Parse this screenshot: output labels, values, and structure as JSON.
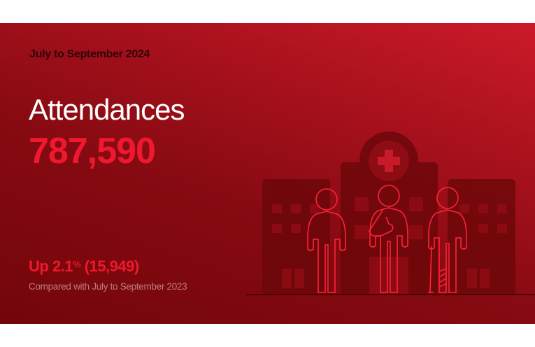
{
  "banner": {
    "period": "July to September 2024",
    "title": "Attendances",
    "value": "787,590",
    "change": {
      "prefix": "Up 2.1",
      "percent_sign": "%",
      "suffix": " (15,949)"
    },
    "comparison": "Compared with July to September 2023"
  },
  "illustration": {
    "icon": "hospital-with-patients-icon"
  },
  "colors": {
    "accent": "#f0182e",
    "background_dark": "#730609",
    "background_light": "#cc1a2a"
  }
}
